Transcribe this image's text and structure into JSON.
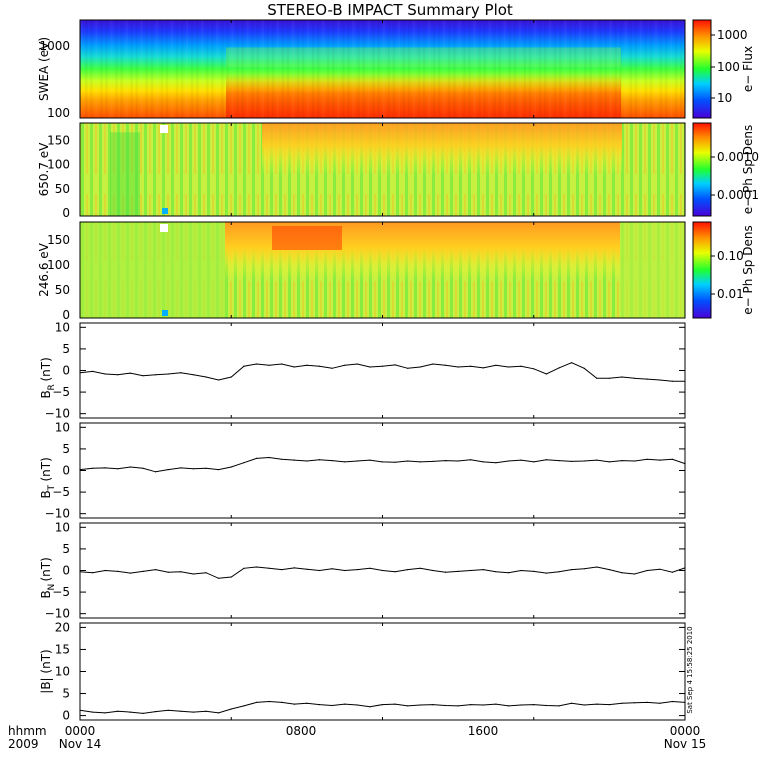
{
  "title": "STEREO-B IMPACT Summary Plot",
  "footer": {
    "row1_label": "hhmm",
    "row2_label": "2009",
    "x_ticks": [
      "0000",
      "0800",
      "1600",
      "0000"
    ],
    "x_dates": [
      "Nov 14",
      "",
      "",
      "Nov 15"
    ],
    "stamp": "Sat Sep 4 15:58:25 2010"
  },
  "chart_data": [
    {
      "type": "heatmap",
      "name": "swea",
      "ylabel": "SWEA (eV)",
      "y_ticks": [
        "1000",
        "100"
      ],
      "colorbar_label": "e− Flux",
      "colorbar_ticks": [
        "1000",
        "100",
        "10"
      ],
      "y_scale": "log",
      "description_hidden": true
    },
    {
      "type": "heatmap",
      "name": "pad_high",
      "ylabel": "650.7 eV",
      "y_ticks": [
        "150",
        "100",
        "50",
        "0"
      ],
      "ylim": [
        0,
        180
      ],
      "colorbar_label": "e− Ph Sp Dens",
      "colorbar_ticks": [
        "0.0010",
        "0.0001"
      ]
    },
    {
      "type": "heatmap",
      "name": "pad_low",
      "ylabel": "246.6 eV",
      "y_ticks": [
        "150",
        "100",
        "50",
        "0"
      ],
      "ylim": [
        0,
        180
      ],
      "colorbar_label": "e− Ph Sp Dens",
      "colorbar_ticks": [
        "0.10",
        "0.01"
      ]
    },
    {
      "type": "line",
      "name": "br",
      "ylabel": "B_R (nT)",
      "ylabel_main": "B",
      "ylabel_sub": "R",
      "ylabel_unit": "(nT)",
      "y_ticks": [
        "10",
        "5",
        "0",
        "−5",
        "−10"
      ],
      "ylim": [
        -11,
        11
      ],
      "x": [
        0,
        0.5,
        1,
        1.5,
        2,
        2.5,
        3,
        3.5,
        4,
        4.5,
        5,
        5.5,
        6,
        6.5,
        7,
        7.5,
        8,
        8.5,
        9,
        9.5,
        10,
        10.5,
        11,
        11.5,
        12,
        12.5,
        13,
        13.5,
        14,
        14.5,
        15,
        15.5,
        16,
        16.5,
        17,
        17.5,
        18,
        18.5,
        19,
        19.5,
        20,
        20.5,
        21,
        21.5,
        22,
        22.5,
        23,
        23.5,
        24
      ],
      "values": [
        -0.5,
        -0.2,
        -0.8,
        -1,
        -0.6,
        -1.2,
        -1,
        -0.8,
        -0.5,
        -1,
        -1.5,
        -2.2,
        -1.5,
        1,
        1.5,
        1.2,
        1.5,
        0.8,
        1.2,
        1,
        0.5,
        1.2,
        1.5,
        0.8,
        1,
        1.3,
        0.5,
        0.8,
        1.5,
        1.2,
        0.8,
        1,
        0.6,
        1.2,
        0.8,
        1,
        0.4,
        -0.8,
        0.6,
        1.8,
        0.5,
        -1.8,
        -1.8,
        -1.5,
        -1.8,
        -2,
        -2.2,
        -2.5,
        -2.5
      ]
    },
    {
      "type": "line",
      "name": "bt",
      "ylabel": "B_T (nT)",
      "ylabel_main": "B",
      "ylabel_sub": "T",
      "ylabel_unit": "(nT)",
      "y_ticks": [
        "10",
        "5",
        "0",
        "−5",
        "−10"
      ],
      "ylim": [
        -11,
        11
      ],
      "x": [
        0,
        0.5,
        1,
        1.5,
        2,
        2.5,
        3,
        3.5,
        4,
        4.5,
        5,
        5.5,
        6,
        6.5,
        7,
        7.5,
        8,
        8.5,
        9,
        9.5,
        10,
        10.5,
        11,
        11.5,
        12,
        12.5,
        13,
        13.5,
        14,
        14.5,
        15,
        15.5,
        16,
        16.5,
        17,
        17.5,
        18,
        18.5,
        19,
        19.5,
        20,
        20.5,
        21,
        21.5,
        22,
        22.5,
        23,
        23.5,
        24
      ],
      "values": [
        0.2,
        0.5,
        0.6,
        0.4,
        0.8,
        0.5,
        -0.3,
        0.2,
        0.6,
        0.4,
        0.5,
        0.2,
        0.8,
        1.8,
        2.8,
        3,
        2.6,
        2.4,
        2.2,
        2.5,
        2.3,
        2,
        2.2,
        2.4,
        2,
        1.9,
        2.2,
        2,
        2.1,
        2.3,
        2.2,
        2.5,
        2,
        1.8,
        2.2,
        2.4,
        2,
        2.5,
        2.3,
        2.1,
        2.2,
        2.4,
        2,
        2.3,
        2.2,
        2.6,
        2.4,
        2.6,
        1.6
      ]
    },
    {
      "type": "line",
      "name": "bn",
      "ylabel": "B_N (nT)",
      "ylabel_main": "B",
      "ylabel_sub": "N",
      "ylabel_unit": "(nT)",
      "y_ticks": [
        "10",
        "5",
        "0",
        "−5",
        "−10"
      ],
      "ylim": [
        -11,
        11
      ],
      "x": [
        0,
        0.5,
        1,
        1.5,
        2,
        2.5,
        3,
        3.5,
        4,
        4.5,
        5,
        5.5,
        6,
        6.5,
        7,
        7.5,
        8,
        8.5,
        9,
        9.5,
        10,
        10.5,
        11,
        11.5,
        12,
        12.5,
        13,
        13.5,
        14,
        14.5,
        15,
        15.5,
        16,
        16.5,
        17,
        17.5,
        18,
        18.5,
        19,
        19.5,
        20,
        20.5,
        21,
        21.5,
        22,
        22.5,
        23,
        23.5,
        24
      ],
      "values": [
        -0.3,
        -0.5,
        0,
        -0.2,
        -0.6,
        -0.2,
        0.2,
        -0.4,
        -0.3,
        -0.8,
        -0.5,
        -1.8,
        -1.5,
        0.5,
        0.8,
        0.5,
        0.2,
        0.6,
        0.3,
        0,
        0.4,
        0,
        0.2,
        0.5,
        0,
        -0.3,
        0.2,
        0.5,
        0,
        -0.4,
        -0.2,
        0,
        0.2,
        -0.3,
        -0.5,
        0,
        -0.2,
        -0.6,
        -0.3,
        0.2,
        0.4,
        0.8,
        0.2,
        -0.5,
        -0.8,
        0,
        0.3,
        -0.4,
        0.6
      ]
    },
    {
      "type": "line",
      "name": "bmag",
      "ylabel": "|B| (nT)",
      "ylabel_unit": "(nT)",
      "y_ticks": [
        "20",
        "15",
        "10",
        "5",
        "0"
      ],
      "ylim": [
        -1,
        21
      ],
      "x": [
        0,
        0.5,
        1,
        1.5,
        2,
        2.5,
        3,
        3.5,
        4,
        4.5,
        5,
        5.5,
        6,
        6.5,
        7,
        7.5,
        8,
        8.5,
        9,
        9.5,
        10,
        10.5,
        11,
        11.5,
        12,
        12.5,
        13,
        13.5,
        14,
        14.5,
        15,
        15.5,
        16,
        16.5,
        17,
        17.5,
        18,
        18.5,
        19,
        19.5,
        20,
        20.5,
        21,
        21.5,
        22,
        22.5,
        23,
        23.5,
        24
      ],
      "values": [
        1.2,
        0.8,
        0.6,
        1,
        0.8,
        0.5,
        0.9,
        1.2,
        1,
        0.8,
        1,
        0.6,
        1.5,
        2.2,
        3,
        3.2,
        3,
        2.6,
        2.8,
        2.5,
        2.3,
        2.6,
        2.4,
        2,
        2.5,
        2.6,
        2.2,
        2.4,
        2.5,
        2.3,
        2.2,
        2.5,
        2.4,
        2.6,
        2.2,
        2.4,
        2.5,
        2.3,
        2.2,
        2.8,
        2.4,
        2.6,
        2.5,
        2.8,
        2.9,
        3,
        2.8,
        3.2,
        3
      ]
    }
  ]
}
